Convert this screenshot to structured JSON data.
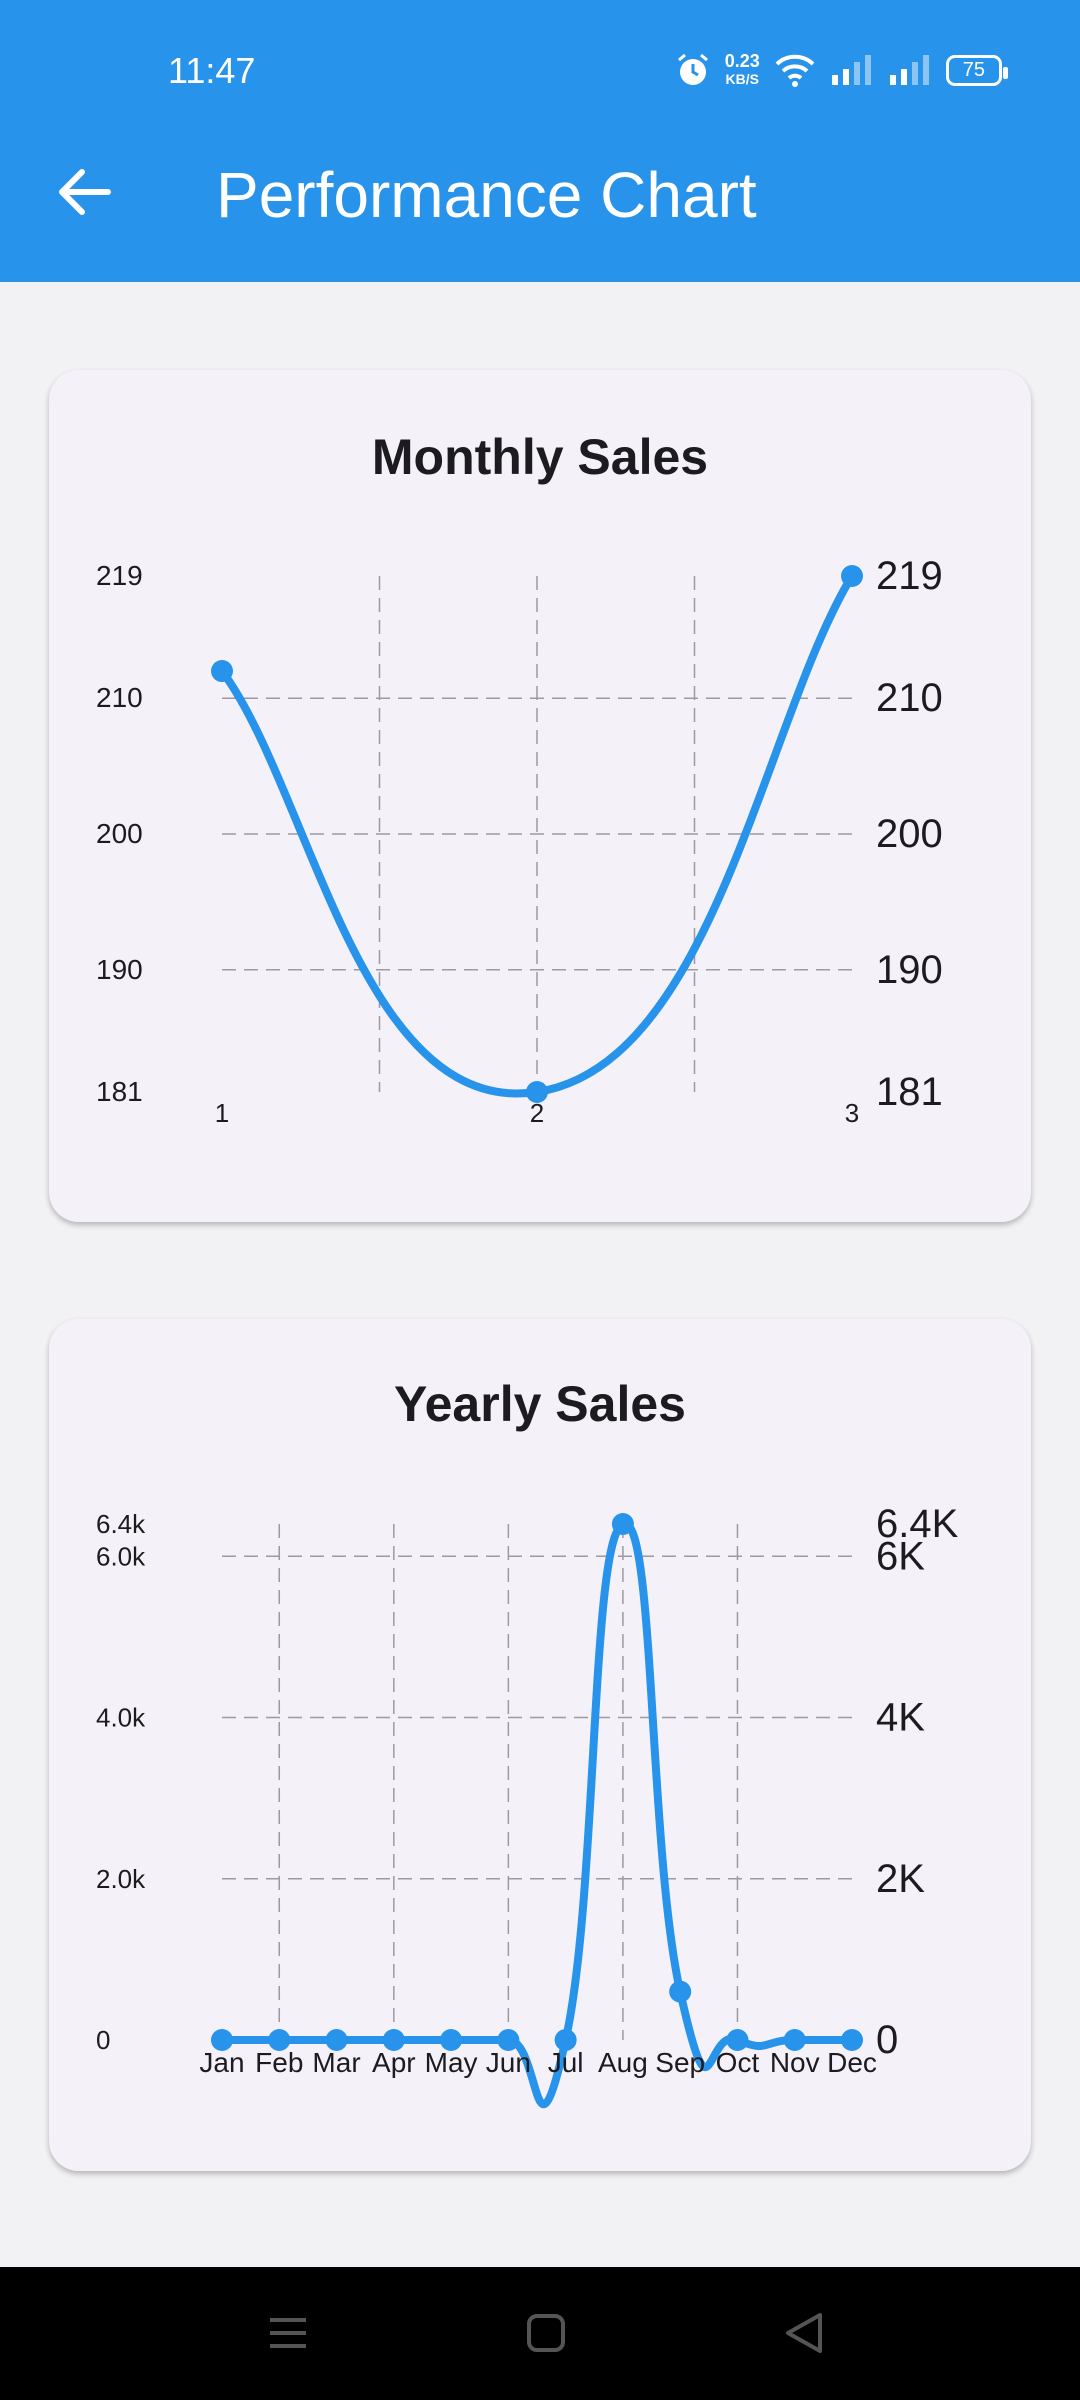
{
  "status_bar": {
    "time": "11:47",
    "net_speed_value": "0.23",
    "net_speed_unit": "KB/S",
    "battery": "75",
    "icons": [
      "alarm-icon",
      "wifi-icon",
      "signal-icon",
      "signal-icon",
      "battery-icon"
    ]
  },
  "app_bar": {
    "title": "Performance Chart",
    "back_icon": "arrow-left-icon",
    "color": "#2893eb"
  },
  "colors": {
    "line": "#2893eb",
    "card": "#f5f1f8",
    "background": "#f2f2f4"
  },
  "cards": [
    {
      "title": "Monthly Sales",
      "left_axis_labels": [
        "219",
        "210",
        "200",
        "190",
        "181"
      ],
      "right_axis_labels": [
        "219",
        "210",
        "200",
        "190",
        "181"
      ],
      "x_labels": [
        "1",
        "2",
        "3"
      ]
    },
    {
      "title": "Yearly Sales",
      "left_axis_labels": [
        "6.4k",
        "6.0k",
        "4.0k",
        "2.0k",
        "0"
      ],
      "right_axis_labels": [
        "6.4K",
        "6K",
        "4K",
        "2K",
        "0"
      ],
      "x_labels": [
        "Jan",
        "Feb",
        "Mar",
        "Apr",
        "May",
        "Jun",
        "Jul",
        "Aug",
        "Sep",
        "Oct",
        "Nov",
        "Dec"
      ]
    }
  ],
  "chart_data": [
    {
      "type": "line",
      "title": "Monthly Sales",
      "x": [
        1,
        2,
        3
      ],
      "y": [
        212,
        181,
        219
      ],
      "ylim": [
        181,
        219
      ],
      "yticks": [
        181,
        190,
        200,
        210,
        219
      ],
      "grid": true,
      "smooth": true
    },
    {
      "type": "line",
      "title": "Yearly Sales",
      "categories": [
        "Jan",
        "Feb",
        "Mar",
        "Apr",
        "May",
        "Jun",
        "Jul",
        "Aug",
        "Sep",
        "Oct",
        "Nov",
        "Dec"
      ],
      "values": [
        0,
        0,
        0,
        0,
        0,
        0,
        0,
        6400,
        600,
        0,
        0,
        0
      ],
      "ylim": [
        0,
        6400
      ],
      "yticks": [
        0,
        2000,
        4000,
        6000,
        6400
      ],
      "grid": true,
      "smooth": true
    }
  ],
  "nav_bar": {
    "icons": [
      "menu-icon",
      "home-square-icon",
      "back-triangle-icon"
    ]
  }
}
